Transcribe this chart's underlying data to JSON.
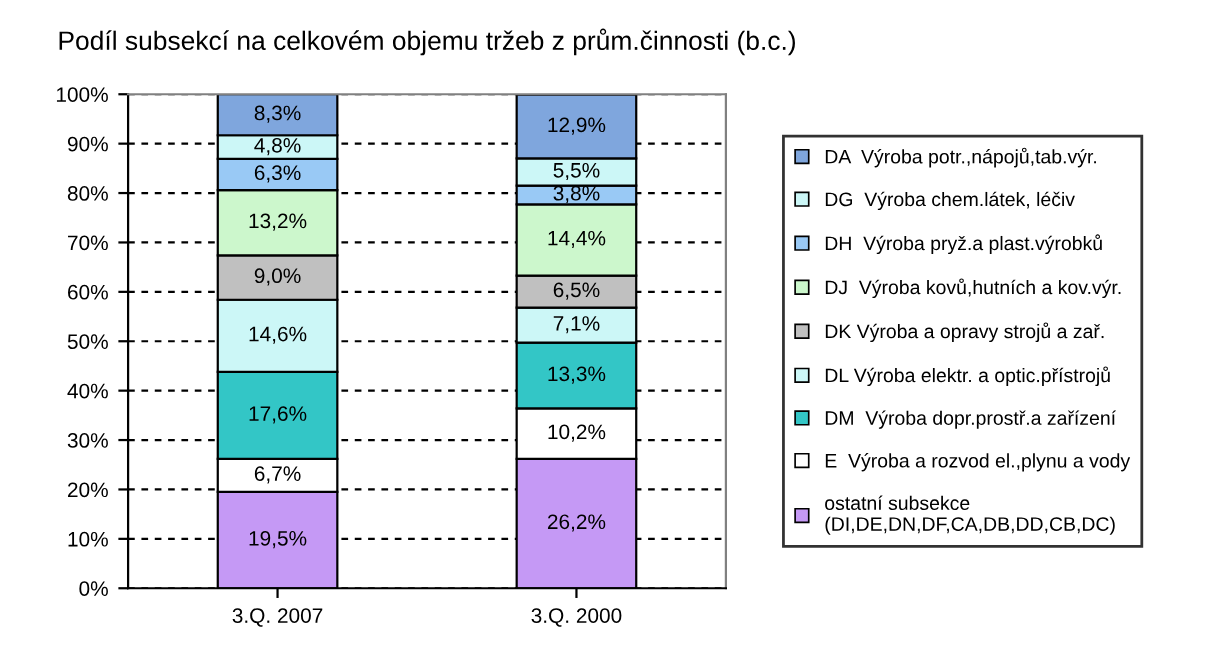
{
  "chart_data": {
    "type": "bar",
    "stacked": true,
    "title": "Podíl subsekcí na celkovém objemu tržeb z prům.činnosti (b.c.)",
    "categories": [
      "3.Q. 2007",
      "3.Q. 2000"
    ],
    "ylim": [
      0,
      100
    ],
    "yticks": [
      {
        "value": 0,
        "label": "0%"
      },
      {
        "value": 10,
        "label": "10%"
      },
      {
        "value": 20,
        "label": "20%"
      },
      {
        "value": 30,
        "label": "30%"
      },
      {
        "value": 40,
        "label": "40%"
      },
      {
        "value": 50,
        "label": "50%"
      },
      {
        "value": 60,
        "label": "60%"
      },
      {
        "value": 70,
        "label": "70%"
      },
      {
        "value": 80,
        "label": "80%"
      },
      {
        "value": 90,
        "label": "90%"
      },
      {
        "value": 100,
        "label": "100%"
      }
    ],
    "grid": "y",
    "line_style": "dashed",
    "legend": "right",
    "series": [
      {
        "name": "ostatní subsekce\n(DI,DE,DN,DF,CA,DB,DD,CB,DC)",
        "color": "#c599f5",
        "values": [
          19.5,
          26.2
        ],
        "value_labels": [
          "19,5%",
          "26,2%"
        ]
      },
      {
        "name": "E  Výroba a rozvod el.,plynu a vody",
        "color": "#ffffff",
        "values": [
          6.7,
          10.2
        ],
        "value_labels": [
          "6,7%",
          "10,2%"
        ]
      },
      {
        "name": "DM  Výroba dopr.prostř.a zařízení",
        "color": "#33c6c6",
        "values": [
          17.6,
          13.3
        ],
        "value_labels": [
          "17,6%",
          "13,3%"
        ]
      },
      {
        "name": "DL Výroba elektr. a optic.přístrojů",
        "color": "#ccf7f7",
        "values": [
          14.6,
          7.1
        ],
        "value_labels": [
          "14,6%",
          "7,1%"
        ]
      },
      {
        "name": "DK Výroba a opravy strojů a zař.",
        "color": "#c0c0c0",
        "values": [
          9.0,
          6.5
        ],
        "value_labels": [
          "9,0%",
          "6,5%"
        ]
      },
      {
        "name": "DJ  Výroba kovů,hutních a kov.výr.",
        "color": "#ccf7cc",
        "values": [
          13.2,
          14.4
        ],
        "value_labels": [
          "13,2%",
          "14,4%"
        ]
      },
      {
        "name": "DH  Výroba pryž.a plast.výrobků",
        "color": "#99c9f5",
        "values": [
          6.3,
          3.8
        ],
        "value_labels": [
          "6,3%",
          "3,8%"
        ]
      },
      {
        "name": "DG  Výroba chem.látek, léčiv",
        "color": "#ccf7f7",
        "values": [
          4.8,
          5.5
        ],
        "value_labels": [
          "4,8%",
          "5,5%"
        ]
      },
      {
        "name": "DA  Výroba potr.,nápojů,tab.výr.",
        "color": "#7fa6dd",
        "values": [
          8.3,
          12.9
        ],
        "value_labels": [
          "8,3%",
          "12,9%"
        ]
      }
    ]
  }
}
